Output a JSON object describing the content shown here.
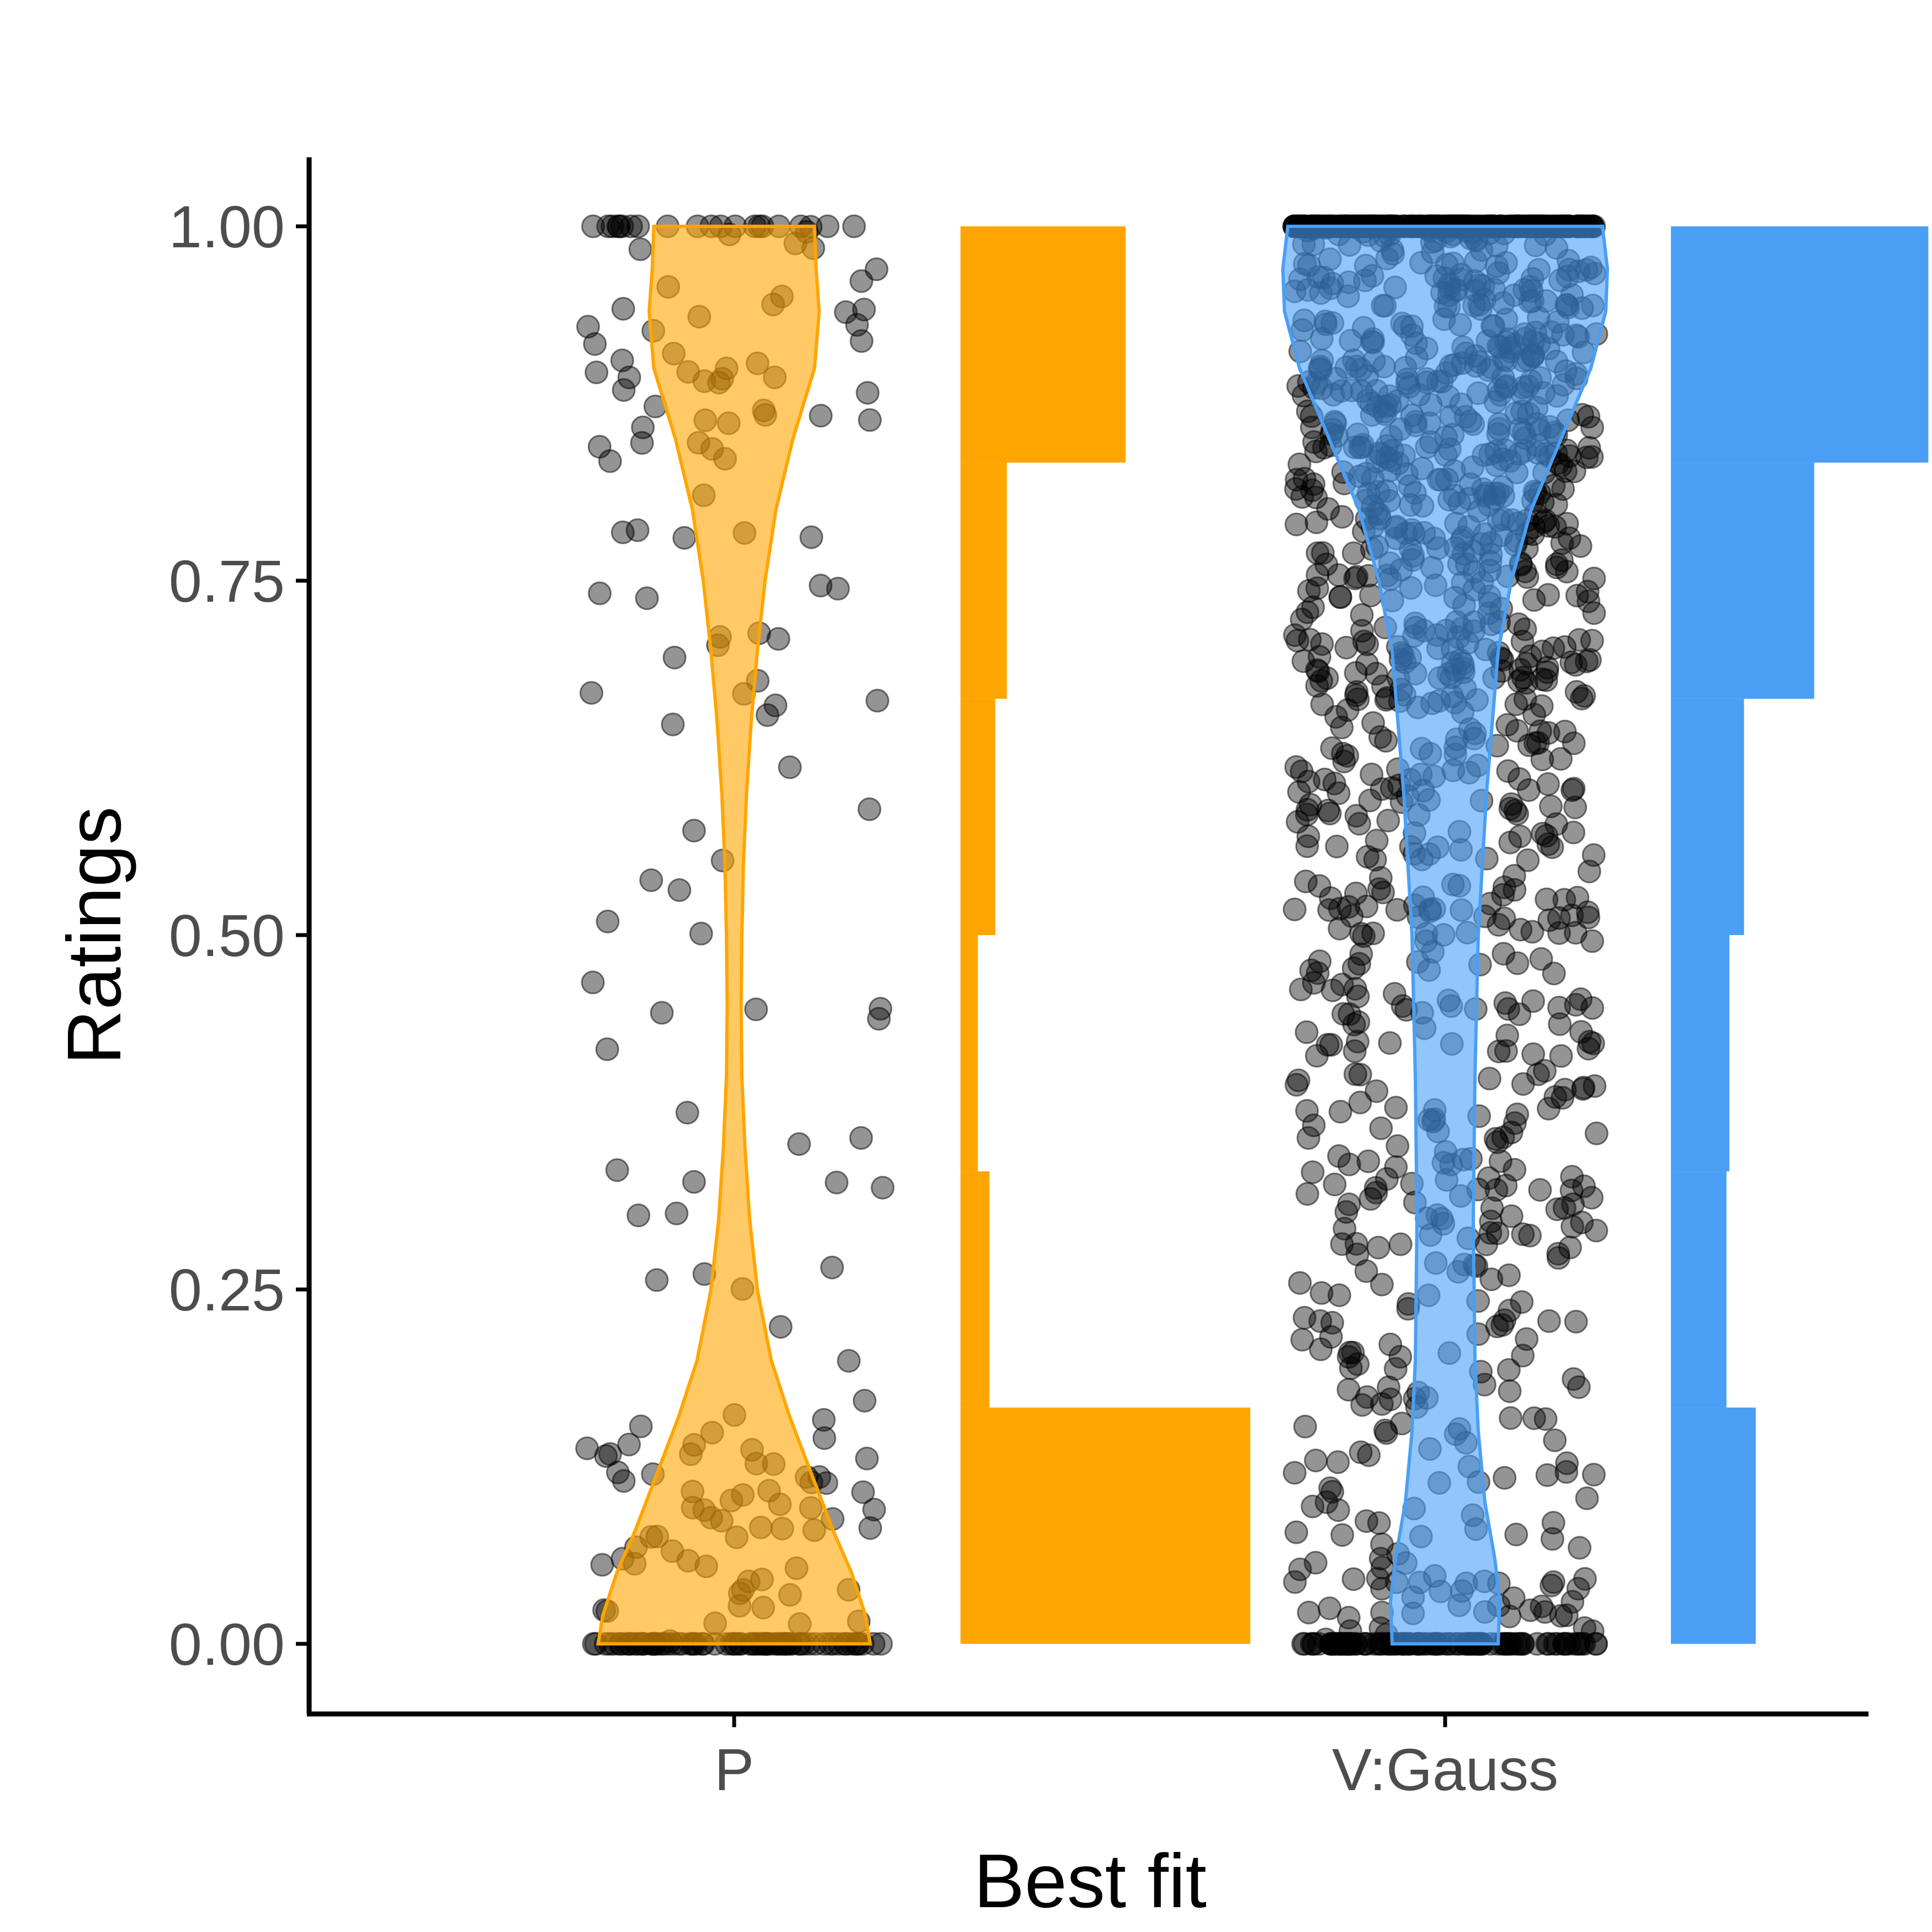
{
  "chart_data": {
    "type": "violin",
    "title": "",
    "xlabel": "Best fit",
    "ylabel": "Ratings",
    "ylim": [
      -0.1,
      1.1
    ],
    "yticks": [
      0,
      0.25,
      0.5,
      0.75,
      1.0
    ],
    "ytick_labels": [
      "0.00",
      "0.25",
      "0.50",
      "0.75",
      "1.00"
    ],
    "categories": [
      "P",
      "V:Gauss"
    ],
    "grid": false,
    "legend": "none",
    "colors": {
      "P": "#FFA500",
      "V:Gauss": "#4A9FF5",
      "points": "#000000"
    },
    "groups": [
      {
        "name": "P",
        "color": "#FFA500",
        "histogram": {
          "bin_edges": [
            0,
            0.1667,
            0.3333,
            0.5,
            0.6667,
            0.8333,
            1.0
          ],
          "relative_heights": [
            1.0,
            0.1,
            0.06,
            0.12,
            0.16,
            0.57
          ]
        },
        "violin_halfwidth_profile": [
          [
            0.0,
            0.88
          ],
          [
            0.02,
            0.85
          ],
          [
            0.05,
            0.76
          ],
          [
            0.08,
            0.64
          ],
          [
            0.12,
            0.5
          ],
          [
            0.16,
            0.36
          ],
          [
            0.2,
            0.24
          ],
          [
            0.25,
            0.15
          ],
          [
            0.3,
            0.1
          ],
          [
            0.35,
            0.07
          ],
          [
            0.4,
            0.05
          ],
          [
            0.45,
            0.045
          ],
          [
            0.5,
            0.05
          ],
          [
            0.55,
            0.06
          ],
          [
            0.6,
            0.08
          ],
          [
            0.65,
            0.11
          ],
          [
            0.7,
            0.15
          ],
          [
            0.75,
            0.2
          ],
          [
            0.8,
            0.27
          ],
          [
            0.85,
            0.38
          ],
          [
            0.9,
            0.52
          ],
          [
            0.94,
            0.55
          ],
          [
            0.97,
            0.53
          ],
          [
            1.0,
            0.52
          ]
        ],
        "jitter_points": 260
      },
      {
        "name": "V:Gauss",
        "color": "#4A9FF5",
        "histogram": {
          "bin_edges": [
            0,
            0.1667,
            0.3333,
            0.5,
            0.6667,
            0.8333,
            1.0
          ],
          "relative_heights": [
            0.29,
            0.19,
            0.2,
            0.25,
            0.49,
            0.88
          ]
        },
        "violin_halfwidth_profile": [
          [
            0.0,
            0.32
          ],
          [
            0.03,
            0.33
          ],
          [
            0.06,
            0.3
          ],
          [
            0.1,
            0.24
          ],
          [
            0.15,
            0.2
          ],
          [
            0.2,
            0.18
          ],
          [
            0.3,
            0.17
          ],
          [
            0.4,
            0.18
          ],
          [
            0.5,
            0.2
          ],
          [
            0.6,
            0.25
          ],
          [
            0.7,
            0.32
          ],
          [
            0.75,
            0.4
          ],
          [
            0.8,
            0.52
          ],
          [
            0.85,
            0.7
          ],
          [
            0.9,
            0.88
          ],
          [
            0.94,
            0.97
          ],
          [
            0.97,
            0.98
          ],
          [
            1.0,
            0.95
          ]
        ],
        "jitter_points": 1400
      }
    ]
  }
}
